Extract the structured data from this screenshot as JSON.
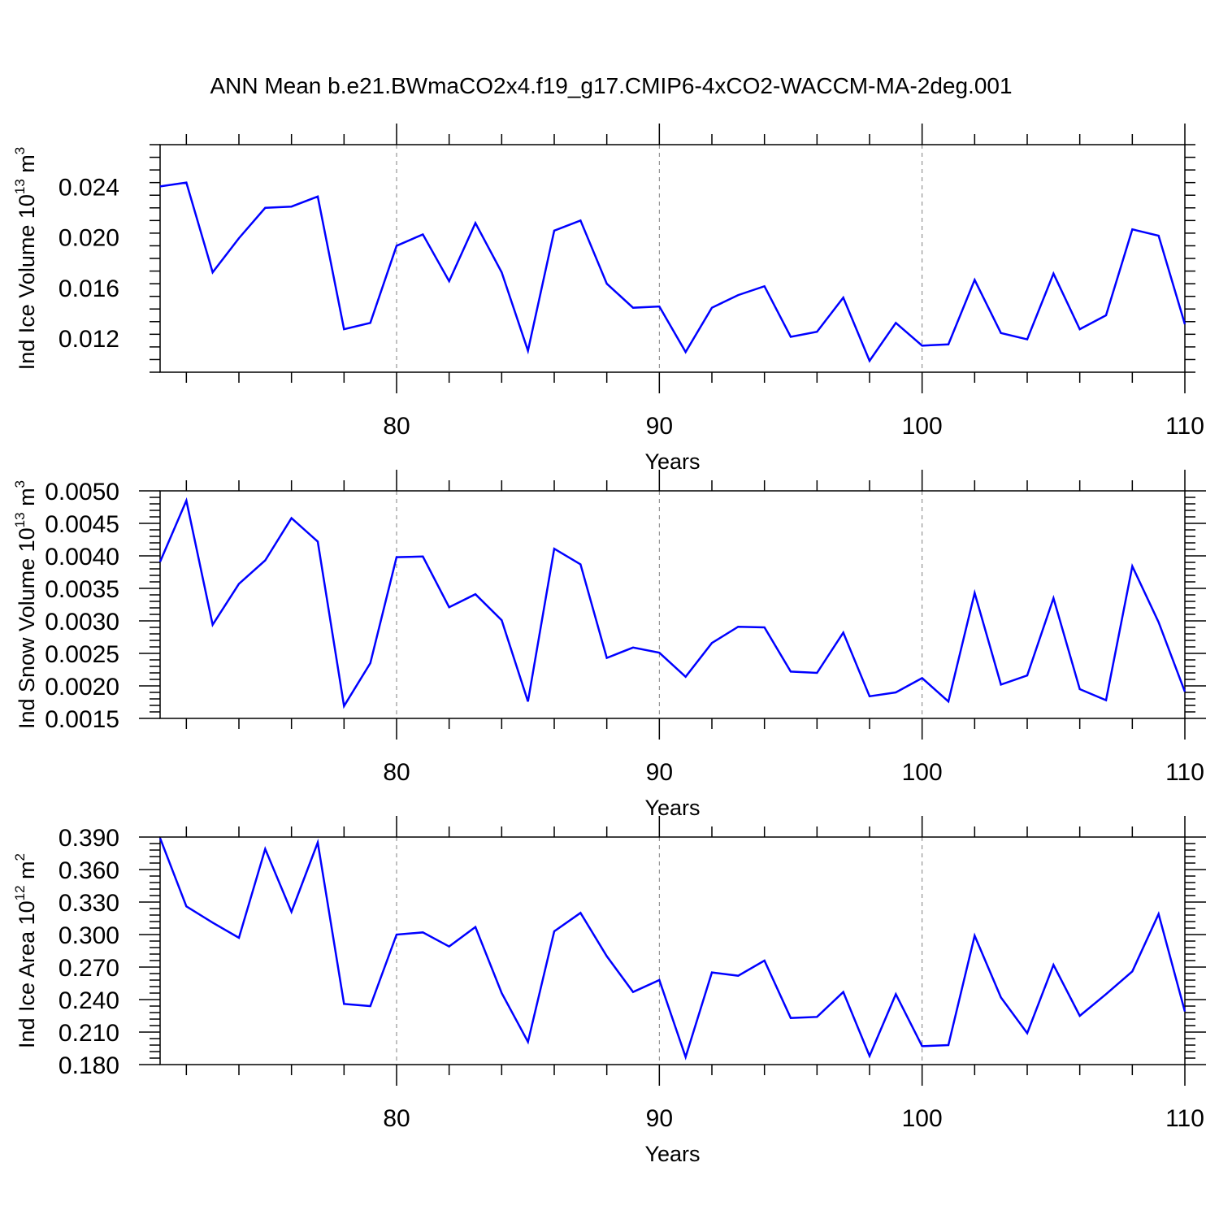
{
  "title": "ANN Mean b.e21.BWmaCO2x4.f19_g17.CMIP6-4xCO2-WACCM-MA-2deg.001",
  "colors": {
    "line": "#0000ff",
    "axis": "#000000",
    "grid": "#808080"
  },
  "chart_data": [
    {
      "type": "line",
      "name": "ind-ice-volume",
      "ylabel": "Ind Ice Volume 10",
      "ylabel_exp": "13",
      "ylabel_unit": " m",
      "ylabel_unit_exp": "3",
      "xlabel": "Years",
      "xlim": [
        71,
        110
      ],
      "ylim": [
        0.0093,
        0.0273
      ],
      "y_major_ticks": [
        0.012,
        0.016,
        0.02,
        0.024
      ],
      "y_tick_labels": [
        "0.012",
        "0.016",
        "0.020",
        "0.024"
      ],
      "y_minor_step": 0.001,
      "x_major_ticks": [
        80,
        90,
        100,
        110
      ],
      "x_tick_labels": [
        "80",
        "90",
        "100",
        "110"
      ],
      "x_minor_step": 2,
      "grid_x": [
        80,
        90,
        100
      ],
      "series": [
        {
          "name": "Ind Ice Volume",
          "x": [
            71,
            72,
            73,
            74,
            75,
            76,
            77,
            78,
            79,
            80,
            81,
            82,
            83,
            84,
            85,
            86,
            87,
            88,
            89,
            90,
            91,
            92,
            93,
            94,
            95,
            96,
            97,
            98,
            99,
            100,
            101,
            102,
            103,
            104,
            105,
            106,
            107,
            108,
            109,
            110
          ],
          "values": [
            0.024,
            0.0243,
            0.0172,
            0.0199,
            0.0223,
            0.0224,
            0.0232,
            0.0127,
            0.0132,
            0.0193,
            0.0202,
            0.0165,
            0.0211,
            0.0172,
            0.011,
            0.0205,
            0.0213,
            0.0163,
            0.0144,
            0.0145,
            0.0109,
            0.0144,
            0.0154,
            0.0161,
            0.0121,
            0.0125,
            0.0152,
            0.0102,
            0.0132,
            0.0114,
            0.0115,
            0.0166,
            0.0124,
            0.0119,
            0.0171,
            0.0127,
            0.0138,
            0.0206,
            0.0201,
            0.0131
          ]
        }
      ]
    },
    {
      "type": "line",
      "name": "ind-snow-volume",
      "ylabel": "Ind Snow Volume 10",
      "ylabel_exp": "13",
      "ylabel_unit": " m",
      "ylabel_unit_exp": "3",
      "xlabel": "Years",
      "xlim": [
        71,
        110
      ],
      "ylim": [
        0.0015,
        0.005
      ],
      "y_major_ticks": [
        0.0015,
        0.002,
        0.0025,
        0.003,
        0.0035,
        0.004,
        0.0045,
        0.005
      ],
      "y_tick_labels": [
        "0.0015",
        "0.0020",
        "0.0025",
        "0.0030",
        "0.0035",
        "0.0040",
        "0.0045",
        "0.0050"
      ],
      "y_minor_step": 0.0001,
      "x_major_ticks": [
        80,
        90,
        100,
        110
      ],
      "x_tick_labels": [
        "80",
        "90",
        "100",
        "110"
      ],
      "x_minor_step": 2,
      "grid_x": [
        80,
        90,
        100
      ],
      "series": [
        {
          "name": "Ind Snow Volume",
          "x": [
            71,
            72,
            73,
            74,
            75,
            76,
            77,
            78,
            79,
            80,
            81,
            82,
            83,
            84,
            85,
            86,
            87,
            88,
            89,
            90,
            91,
            92,
            93,
            94,
            95,
            96,
            97,
            98,
            99,
            100,
            101,
            102,
            103,
            104,
            105,
            106,
            107,
            108,
            109,
            110
          ],
          "values": [
            0.00391,
            0.00485,
            0.00294,
            0.00357,
            0.00393,
            0.00458,
            0.00422,
            0.00169,
            0.00235,
            0.00398,
            0.00399,
            0.00321,
            0.00341,
            0.00301,
            0.00176,
            0.00411,
            0.00387,
            0.00243,
            0.00259,
            0.00251,
            0.00214,
            0.00266,
            0.00291,
            0.0029,
            0.00222,
            0.0022,
            0.00282,
            0.00184,
            0.0019,
            0.00212,
            0.00176,
            0.00343,
            0.00202,
            0.00216,
            0.00335,
            0.00195,
            0.00178,
            0.00384,
            0.00298,
            0.00191
          ]
        }
      ]
    },
    {
      "type": "line",
      "name": "ind-ice-area",
      "ylabel": "Ind Ice Area 10",
      "ylabel_exp": "12",
      "ylabel_unit": " m",
      "ylabel_unit_exp": "2",
      "xlabel": "Years",
      "xlim": [
        71,
        110
      ],
      "ylim": [
        0.18,
        0.39
      ],
      "y_major_ticks": [
        0.18,
        0.21,
        0.24,
        0.27,
        0.3,
        0.33,
        0.36,
        0.39
      ],
      "y_tick_labels": [
        "0.180",
        "0.210",
        "0.240",
        "0.270",
        "0.300",
        "0.330",
        "0.360",
        "0.390"
      ],
      "y_minor_step": 0.006,
      "x_major_ticks": [
        80,
        90,
        100,
        110
      ],
      "x_tick_labels": [
        "80",
        "90",
        "100",
        "110"
      ],
      "x_minor_step": 2,
      "grid_x": [
        80,
        90,
        100
      ],
      "series": [
        {
          "name": "Ind Ice Area",
          "x": [
            71,
            72,
            73,
            74,
            75,
            76,
            77,
            78,
            79,
            80,
            81,
            82,
            83,
            84,
            85,
            86,
            87,
            88,
            89,
            90,
            91,
            92,
            93,
            94,
            95,
            96,
            97,
            98,
            99,
            100,
            101,
            102,
            103,
            104,
            105,
            106,
            107,
            108,
            109,
            110
          ],
          "values": [
            0.389,
            0.326,
            0.311,
            0.297,
            0.379,
            0.321,
            0.385,
            0.236,
            0.234,
            0.3,
            0.302,
            0.289,
            0.307,
            0.246,
            0.201,
            0.303,
            0.32,
            0.28,
            0.247,
            0.258,
            0.187,
            0.265,
            0.262,
            0.276,
            0.223,
            0.224,
            0.247,
            0.188,
            0.245,
            0.197,
            0.198,
            0.299,
            0.242,
            0.209,
            0.272,
            0.225,
            0.245,
            0.266,
            0.319,
            0.229
          ]
        }
      ]
    }
  ]
}
